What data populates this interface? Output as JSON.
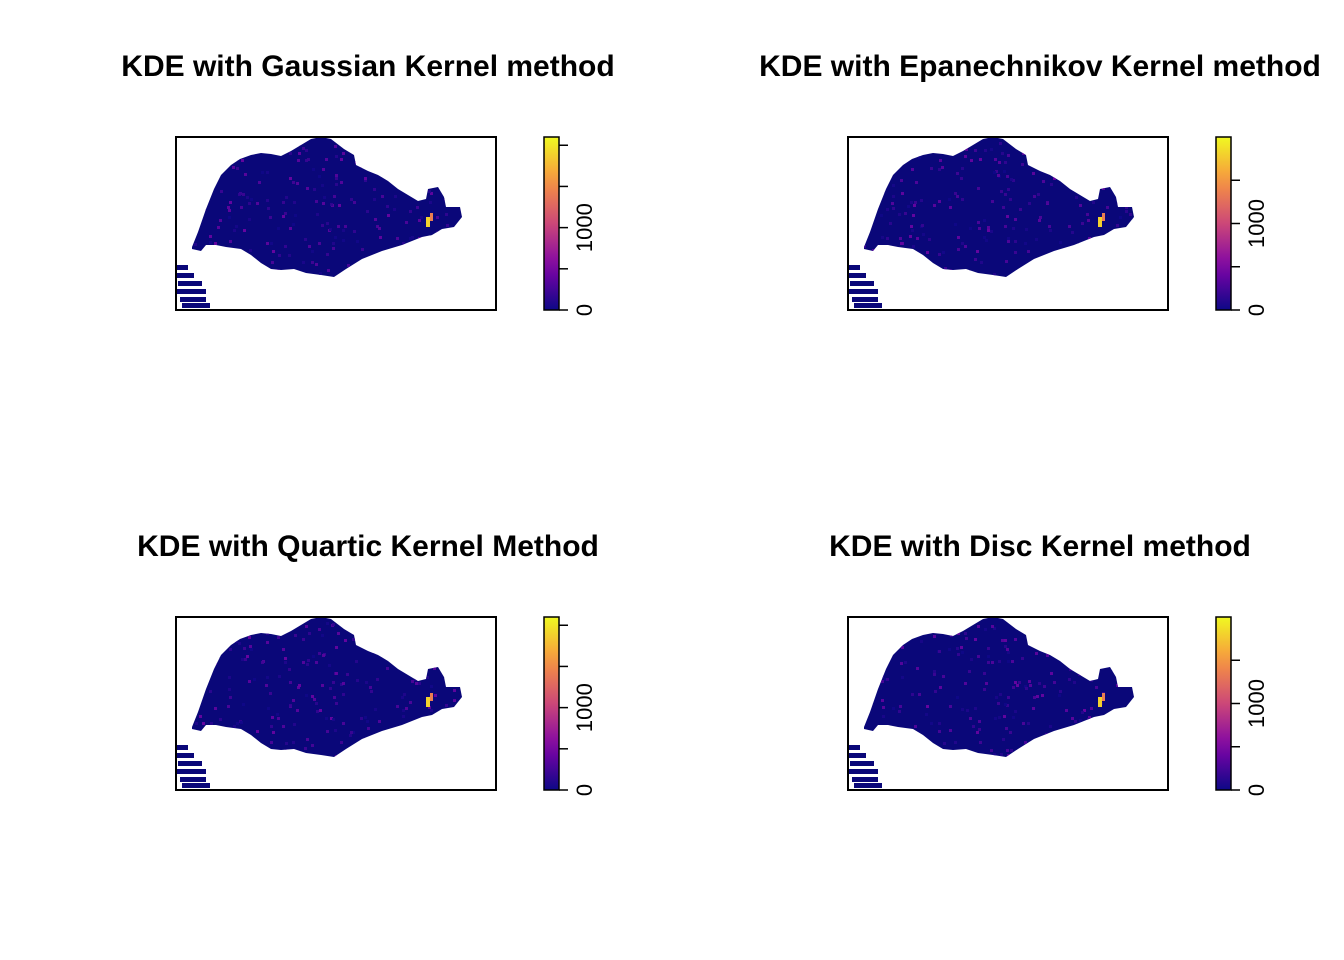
{
  "chart_data": [
    {
      "type": "heatmap",
      "title": "KDE with Gaussian Kernel method",
      "colorbar": {
        "ticks": [
          "0",
          "1000"
        ],
        "range": [
          0,
          2100
        ],
        "tick_values": [
          0,
          500,
          1000,
          1500,
          2000
        ]
      },
      "hotspot_value": 1900,
      "colors": {
        "low": "#0d0887",
        "mid": "#cc4778",
        "high": "#f0f921"
      }
    },
    {
      "type": "heatmap",
      "title": "KDE with Epanechnikov Kernel method",
      "colorbar": {
        "ticks": [
          "0",
          "1000"
        ],
        "range": [
          0,
          2000
        ],
        "tick_values": [
          0,
          500,
          1000,
          1500
        ]
      },
      "hotspot_value": 1800,
      "colors": {
        "low": "#0d0887",
        "mid": "#cc4778",
        "high": "#f0f921"
      }
    },
    {
      "type": "heatmap",
      "title": "KDE with Quartic Kernel Method",
      "colorbar": {
        "ticks": [
          "0",
          "1000"
        ],
        "range": [
          0,
          2100
        ],
        "tick_values": [
          0,
          500,
          1000,
          1500,
          2000
        ]
      },
      "hotspot_value": 1900,
      "colors": {
        "low": "#0d0887",
        "mid": "#cc4778",
        "high": "#f0f921"
      }
    },
    {
      "type": "heatmap",
      "title": "KDE with Disc Kernel method",
      "colorbar": {
        "ticks": [
          "0",
          "1000"
        ],
        "range": [
          0,
          2000
        ],
        "tick_values": [
          0,
          500,
          1000,
          1500
        ]
      },
      "hotspot_value": 1800,
      "colors": {
        "low": "#0d0887",
        "mid": "#cc4778",
        "high": "#f0f921"
      }
    }
  ]
}
